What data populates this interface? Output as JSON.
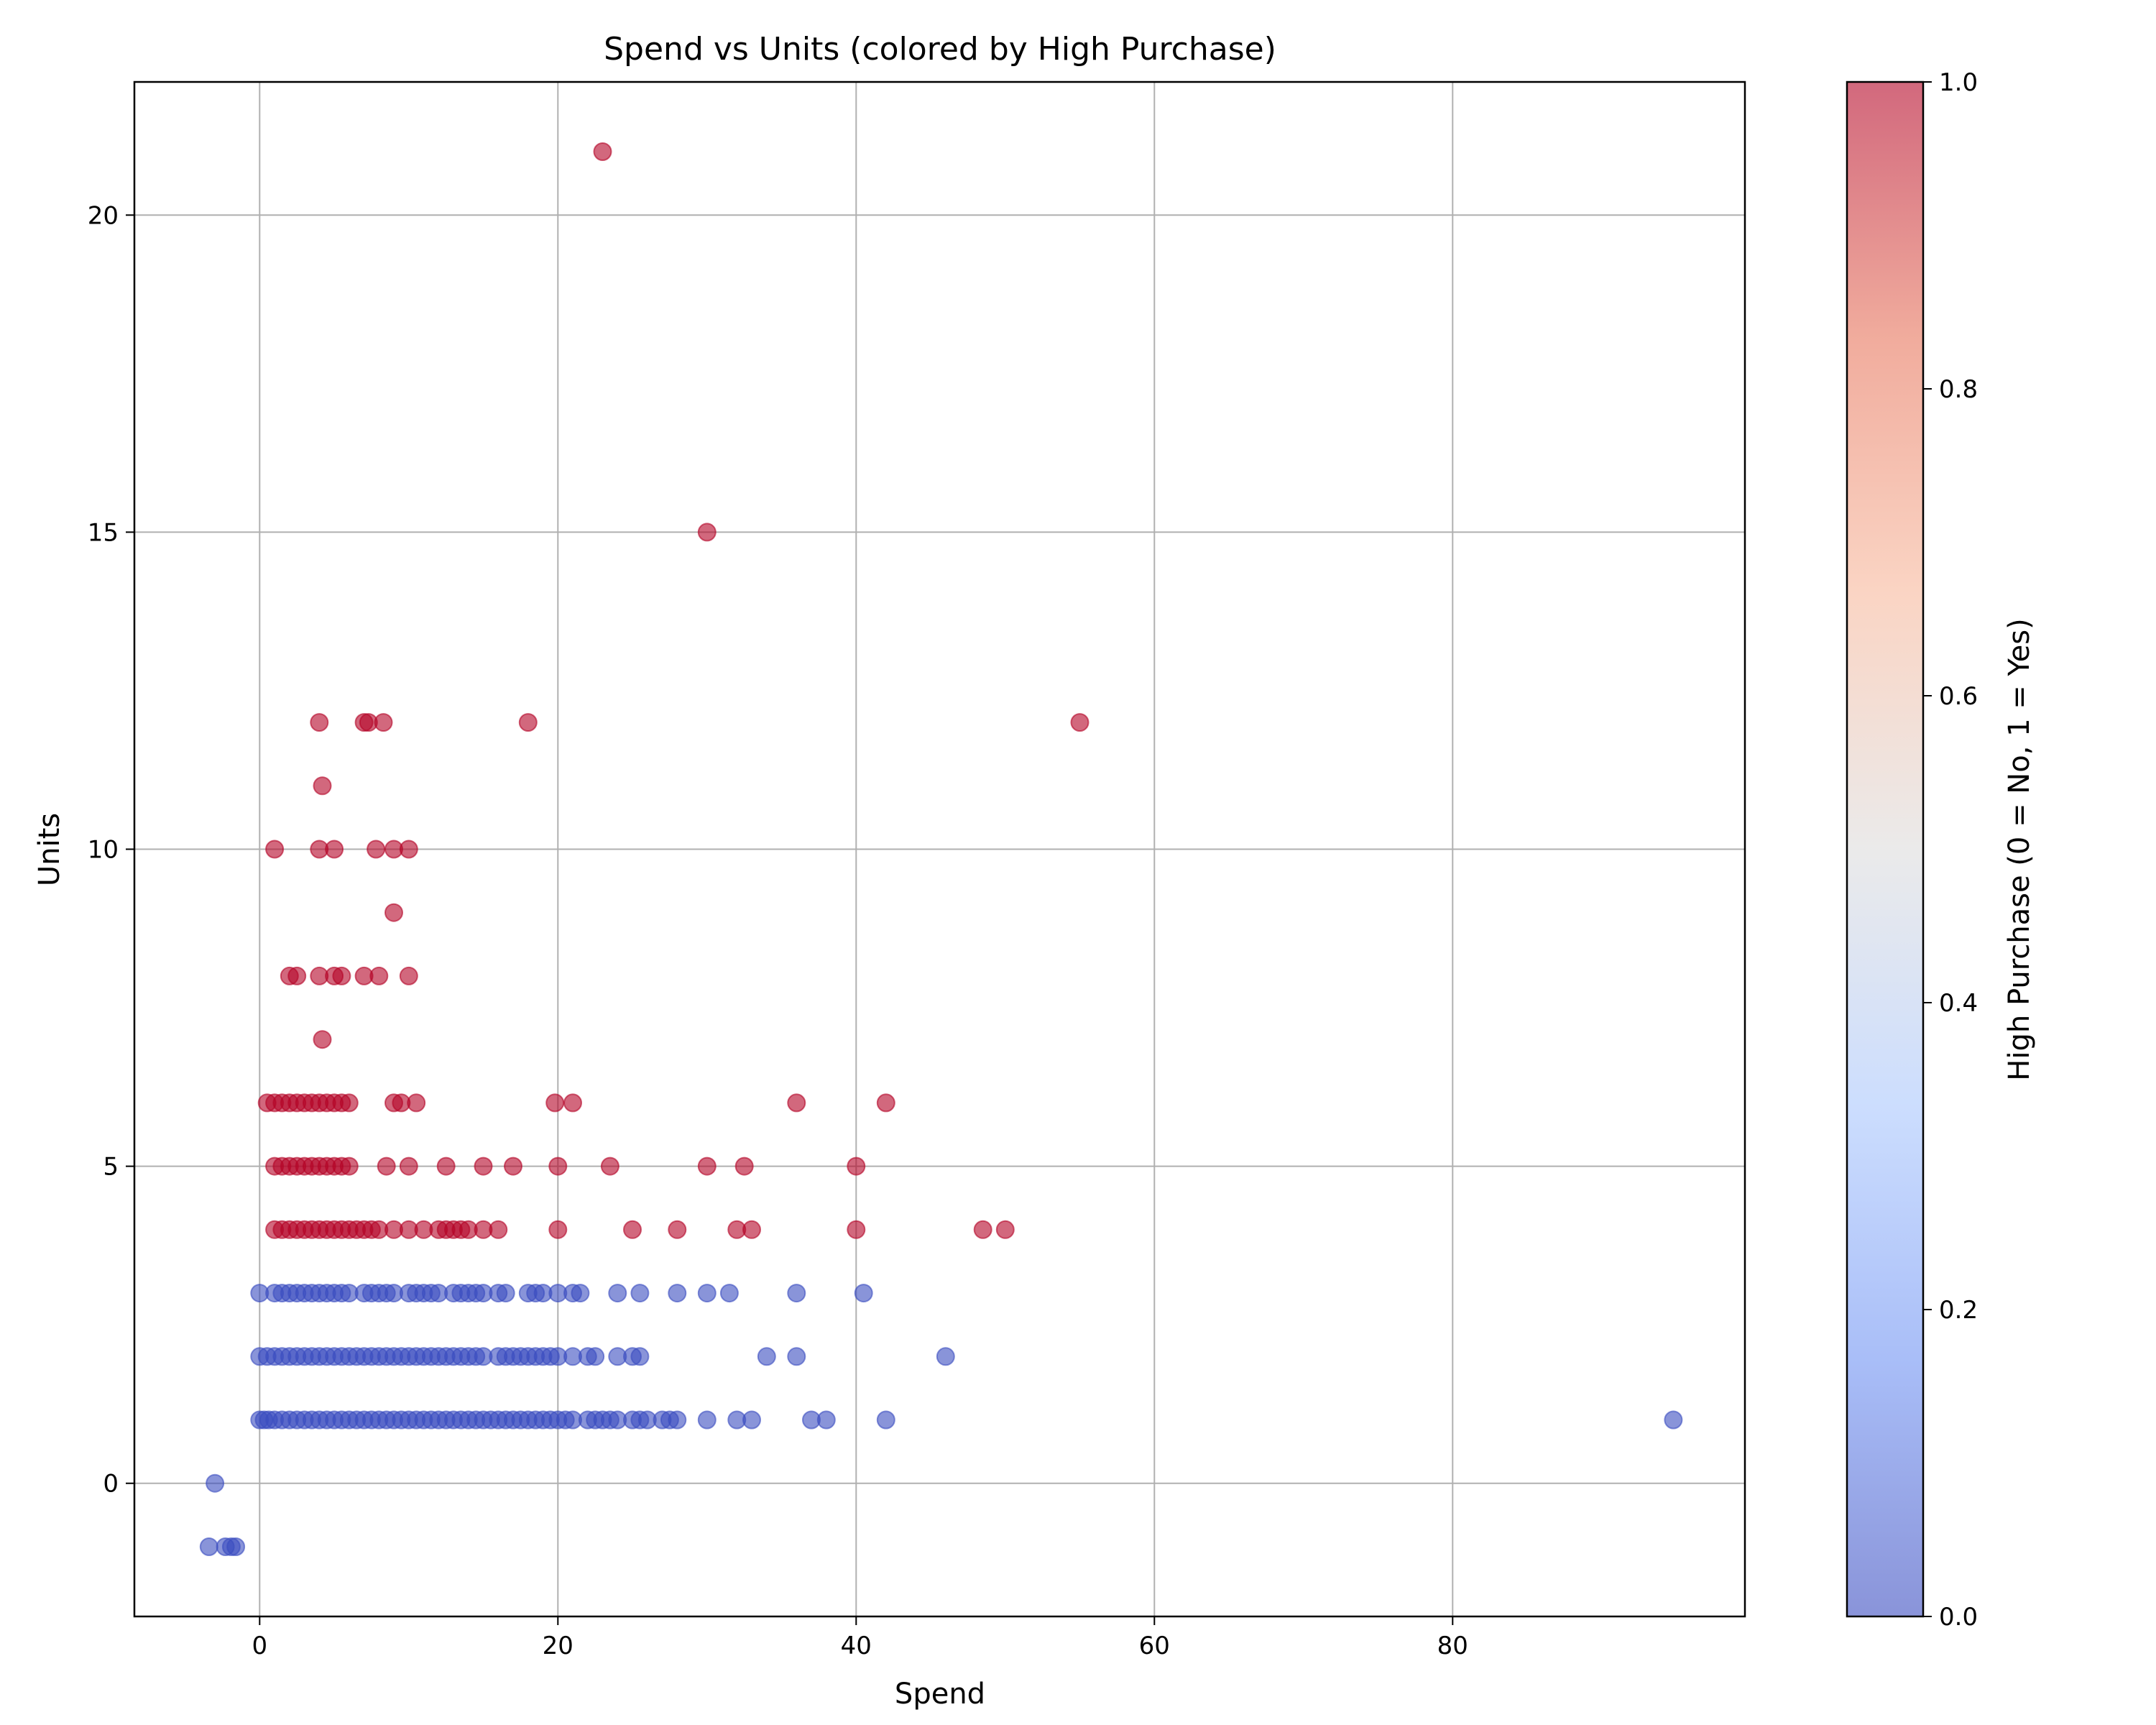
{
  "chart_data": {
    "type": "scatter",
    "title": "Spend vs Units (colored by High Purchase)",
    "xlabel": "Spend",
    "ylabel": "Units",
    "xlim": [
      -8.4,
      99.6
    ],
    "ylim": [
      -2.1,
      22.1
    ],
    "xticks": [
      0,
      20,
      40,
      60,
      80
    ],
    "yticks": [
      0,
      5,
      10,
      15,
      20
    ],
    "grid": true,
    "marker_alpha": 0.6,
    "colorbar": {
      "label": "High Purchase (0 = No, 1 = Yes)",
      "range": [
        0.0,
        1.0
      ],
      "ticks": [
        0.0,
        0.2,
        0.4,
        0.6,
        0.8,
        1.0
      ],
      "tick_labels": [
        "0.0",
        "0.2",
        "0.4",
        "0.6",
        "0.8",
        "1.0"
      ],
      "colormap": "coolwarm",
      "stops": [
        "#3b4cc0",
        "#6f92f3",
        "#aac7fd",
        "#dddcdc",
        "#f7b89c",
        "#e7745b",
        "#b40426"
      ]
    },
    "colors": {
      "high": "#b40426",
      "low": "#3b4cc0"
    },
    "series": [
      {
        "value": 0,
        "points": [
          [
            -3.4,
            -1
          ],
          [
            -2.3,
            -1
          ],
          [
            -1.9,
            -1
          ],
          [
            -1.6,
            -1
          ],
          [
            -3,
            0
          ],
          [
            0,
            1
          ],
          [
            0.3,
            1
          ],
          [
            0.6,
            1
          ],
          [
            1,
            1
          ],
          [
            1.5,
            1
          ],
          [
            2,
            1
          ],
          [
            2.5,
            1
          ],
          [
            3,
            1
          ],
          [
            3.5,
            1
          ],
          [
            4,
            1
          ],
          [
            4.5,
            1
          ],
          [
            5,
            1
          ],
          [
            5.5,
            1
          ],
          [
            6,
            1
          ],
          [
            6.5,
            1
          ],
          [
            7,
            1
          ],
          [
            7.5,
            1
          ],
          [
            8,
            1
          ],
          [
            8.5,
            1
          ],
          [
            9,
            1
          ],
          [
            9.5,
            1
          ],
          [
            10,
            1
          ],
          [
            10.5,
            1
          ],
          [
            11,
            1
          ],
          [
            11.5,
            1
          ],
          [
            12,
            1
          ],
          [
            12.5,
            1
          ],
          [
            13,
            1
          ],
          [
            13.5,
            1
          ],
          [
            14,
            1
          ],
          [
            14.5,
            1
          ],
          [
            15,
            1
          ],
          [
            15.5,
            1
          ],
          [
            16,
            1
          ],
          [
            16.5,
            1
          ],
          [
            17,
            1
          ],
          [
            17.5,
            1
          ],
          [
            18,
            1
          ],
          [
            18.5,
            1
          ],
          [
            19,
            1
          ],
          [
            19.5,
            1
          ],
          [
            20,
            1
          ],
          [
            20.5,
            1
          ],
          [
            21,
            1
          ],
          [
            22,
            1
          ],
          [
            22.5,
            1
          ],
          [
            23,
            1
          ],
          [
            23.5,
            1
          ],
          [
            24,
            1
          ],
          [
            25,
            1
          ],
          [
            25.5,
            1
          ],
          [
            26,
            1
          ],
          [
            27,
            1
          ],
          [
            27.5,
            1
          ],
          [
            28,
            1
          ],
          [
            30,
            1
          ],
          [
            32,
            1
          ],
          [
            33,
            1
          ],
          [
            37,
            1
          ],
          [
            38,
            1
          ],
          [
            42,
            1
          ],
          [
            94.8,
            1
          ],
          [
            0,
            2
          ],
          [
            0.5,
            2
          ],
          [
            1,
            2
          ],
          [
            1.5,
            2
          ],
          [
            2,
            2
          ],
          [
            2.5,
            2
          ],
          [
            3,
            2
          ],
          [
            3.5,
            2
          ],
          [
            4,
            2
          ],
          [
            4.5,
            2
          ],
          [
            5,
            2
          ],
          [
            5.5,
            2
          ],
          [
            6,
            2
          ],
          [
            6.5,
            2
          ],
          [
            7,
            2
          ],
          [
            7.5,
            2
          ],
          [
            8,
            2
          ],
          [
            8.5,
            2
          ],
          [
            9,
            2
          ],
          [
            9.5,
            2
          ],
          [
            10,
            2
          ],
          [
            10.5,
            2
          ],
          [
            11,
            2
          ],
          [
            11.5,
            2
          ],
          [
            12,
            2
          ],
          [
            12.5,
            2
          ],
          [
            13,
            2
          ],
          [
            13.5,
            2
          ],
          [
            14,
            2
          ],
          [
            14.5,
            2
          ],
          [
            15,
            2
          ],
          [
            16,
            2
          ],
          [
            16.5,
            2
          ],
          [
            17,
            2
          ],
          [
            17.5,
            2
          ],
          [
            18,
            2
          ],
          [
            18.5,
            2
          ],
          [
            19,
            2
          ],
          [
            19.5,
            2
          ],
          [
            20,
            2
          ],
          [
            21,
            2
          ],
          [
            22,
            2
          ],
          [
            22.5,
            2
          ],
          [
            24,
            2
          ],
          [
            25,
            2
          ],
          [
            25.5,
            2
          ],
          [
            34,
            2
          ],
          [
            36,
            2
          ],
          [
            46,
            2
          ],
          [
            0,
            3
          ],
          [
            1,
            3
          ],
          [
            1.5,
            3
          ],
          [
            2,
            3
          ],
          [
            2.5,
            3
          ],
          [
            3,
            3
          ],
          [
            3.5,
            3
          ],
          [
            4,
            3
          ],
          [
            4.5,
            3
          ],
          [
            5,
            3
          ],
          [
            5.5,
            3
          ],
          [
            6,
            3
          ],
          [
            7,
            3
          ],
          [
            7.5,
            3
          ],
          [
            8,
            3
          ],
          [
            8.5,
            3
          ],
          [
            9,
            3
          ],
          [
            10,
            3
          ],
          [
            10.5,
            3
          ],
          [
            11,
            3
          ],
          [
            11.5,
            3
          ],
          [
            12,
            3
          ],
          [
            13,
            3
          ],
          [
            13.5,
            3
          ],
          [
            14,
            3
          ],
          [
            14.5,
            3
          ],
          [
            15,
            3
          ],
          [
            16,
            3
          ],
          [
            16.5,
            3
          ],
          [
            18,
            3
          ],
          [
            18.5,
            3
          ],
          [
            19,
            3
          ],
          [
            20,
            3
          ],
          [
            21,
            3
          ],
          [
            21.5,
            3
          ],
          [
            24,
            3
          ],
          [
            25.5,
            3
          ],
          [
            28,
            3
          ],
          [
            30,
            3
          ],
          [
            31.5,
            3
          ],
          [
            36,
            3
          ],
          [
            40.5,
            3
          ]
        ]
      },
      {
        "value": 1,
        "points": [
          [
            1,
            4
          ],
          [
            1.5,
            4
          ],
          [
            2,
            4
          ],
          [
            2.5,
            4
          ],
          [
            3,
            4
          ],
          [
            3.5,
            4
          ],
          [
            4,
            4
          ],
          [
            4.5,
            4
          ],
          [
            5,
            4
          ],
          [
            5.5,
            4
          ],
          [
            6,
            4
          ],
          [
            6.5,
            4
          ],
          [
            7,
            4
          ],
          [
            7.5,
            4
          ],
          [
            8,
            4
          ],
          [
            9,
            4
          ],
          [
            10,
            4
          ],
          [
            11,
            4
          ],
          [
            12,
            4
          ],
          [
            12.5,
            4
          ],
          [
            13,
            4
          ],
          [
            13.5,
            4
          ],
          [
            14,
            4
          ],
          [
            15,
            4
          ],
          [
            16,
            4
          ],
          [
            20,
            4
          ],
          [
            25,
            4
          ],
          [
            28,
            4
          ],
          [
            32,
            4
          ],
          [
            33,
            4
          ],
          [
            40,
            4
          ],
          [
            48.5,
            4
          ],
          [
            50,
            4
          ],
          [
            1,
            5
          ],
          [
            1.5,
            5
          ],
          [
            2,
            5
          ],
          [
            2.5,
            5
          ],
          [
            3,
            5
          ],
          [
            3.5,
            5
          ],
          [
            4,
            5
          ],
          [
            4.5,
            5
          ],
          [
            5,
            5
          ],
          [
            5.5,
            5
          ],
          [
            6,
            5
          ],
          [
            8.5,
            5
          ],
          [
            10,
            5
          ],
          [
            12.5,
            5
          ],
          [
            15,
            5
          ],
          [
            17,
            5
          ],
          [
            20,
            5
          ],
          [
            23.5,
            5
          ],
          [
            30,
            5
          ],
          [
            32.5,
            5
          ],
          [
            40,
            5
          ],
          [
            0.5,
            6
          ],
          [
            1,
            6
          ],
          [
            1.5,
            6
          ],
          [
            2,
            6
          ],
          [
            2.5,
            6
          ],
          [
            3,
            6
          ],
          [
            3.5,
            6
          ],
          [
            4,
            6
          ],
          [
            4.5,
            6
          ],
          [
            5,
            6
          ],
          [
            5.5,
            6
          ],
          [
            6,
            6
          ],
          [
            9,
            6
          ],
          [
            9.5,
            6
          ],
          [
            10.5,
            6
          ],
          [
            19.8,
            6
          ],
          [
            21,
            6
          ],
          [
            36,
            6
          ],
          [
            42,
            6
          ],
          [
            4.2,
            7
          ],
          [
            2,
            8
          ],
          [
            2.5,
            8
          ],
          [
            4,
            8
          ],
          [
            5,
            8
          ],
          [
            5.5,
            8
          ],
          [
            7,
            8
          ],
          [
            8,
            8
          ],
          [
            10,
            8
          ],
          [
            9,
            9
          ],
          [
            1,
            10
          ],
          [
            4,
            10
          ],
          [
            5,
            10
          ],
          [
            7.8,
            10
          ],
          [
            9,
            10
          ],
          [
            10,
            10
          ],
          [
            4.2,
            11
          ],
          [
            4,
            12
          ],
          [
            7,
            12
          ],
          [
            7.3,
            12
          ],
          [
            8.3,
            12
          ],
          [
            18,
            12
          ],
          [
            55,
            12
          ],
          [
            30,
            15
          ],
          [
            23,
            21
          ]
        ]
      }
    ]
  }
}
